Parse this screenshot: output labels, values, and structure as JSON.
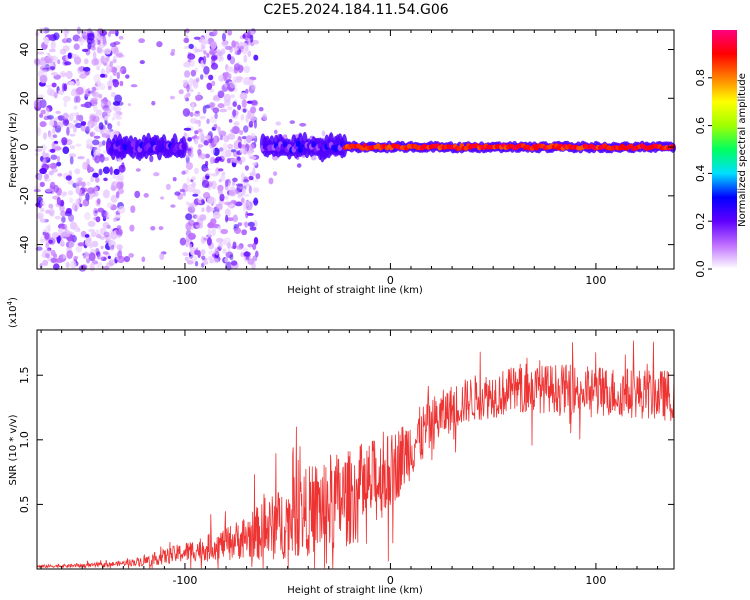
{
  "title": "C2E5.2024.184.11.54.G06",
  "chart_data": [
    {
      "type": "heatmap",
      "xlabel": "Height of straight line (km)",
      "ylabel": "Frequency (Hz)",
      "xlim": [
        -172,
        138
      ],
      "ylim": [
        -50,
        48
      ],
      "x_ticks": [
        -100,
        0,
        100
      ],
      "x_tick_labels": [
        "-100",
        "0",
        "100"
      ],
      "y_ticks": [
        -40,
        -20,
        0,
        20,
        40
      ],
      "y_tick_labels": [
        "-40",
        "-20",
        "0",
        "20",
        "40"
      ],
      "colorbar": {
        "label": "Normalized spectral amplitude",
        "range": [
          0,
          1
        ],
        "ticks": [
          0.0,
          0.2,
          0.4,
          0.6,
          0.8
        ],
        "tick_labels": [
          "0.0",
          "0.2",
          "0.4",
          "0.6",
          "0.8"
        ],
        "colors": [
          "#ffffff",
          "#c070ff",
          "#6000ff",
          "#0000ff",
          "#00e0ff",
          "#00ff60",
          "#a0ff00",
          "#ffff00",
          "#ff8000",
          "#ff0000",
          "#ff0080"
        ]
      },
      "noise_regions": [
        {
          "x_range": [
            -172,
            -130
          ],
          "density": 0.55
        },
        {
          "x_range": [
            -100,
            -65
          ],
          "density": 0.5
        }
      ],
      "ridge": [
        {
          "x_range": [
            -137,
            -100
          ],
          "frequency": 0,
          "amplitude": 0.3
        },
        {
          "x_range": [
            -62,
            -22
          ],
          "frequency": 0,
          "amplitude": 0.3
        },
        {
          "x_range": [
            -22,
            138
          ],
          "frequency": 0,
          "amplitude": 0.95
        }
      ]
    },
    {
      "type": "line",
      "xlabel": "Height of straight line (km)",
      "ylabel": "SNR (10 * v/v)",
      "y_scale_note": "(x10",
      "y_scale_exp": "4",
      "xlim": [
        -172,
        138
      ],
      "ylim": [
        0,
        1.85
      ],
      "x_ticks": [
        -100,
        0,
        100
      ],
      "x_tick_labels": [
        "-100",
        "0",
        "100"
      ],
      "y_ticks": [
        0.5,
        1.0,
        1.5
      ],
      "y_tick_labels": [
        "0.5",
        "1.0",
        "1.5"
      ],
      "color": "#ee3333",
      "trend": {
        "x": [
          -172,
          -140,
          -120,
          -100,
          -80,
          -60,
          -40,
          -20,
          -10,
          0,
          10,
          20,
          30,
          40,
          60,
          80,
          100,
          120,
          138
        ],
        "y": [
          0.02,
          0.03,
          0.06,
          0.13,
          0.2,
          0.3,
          0.45,
          0.55,
          0.65,
          0.75,
          0.95,
          1.12,
          1.25,
          1.32,
          1.38,
          1.4,
          1.38,
          1.36,
          1.34
        ]
      },
      "noise": {
        "x": [
          -172,
          -130,
          -110,
          -80,
          -50,
          -30,
          -10,
          10,
          30,
          138
        ],
        "y": [
          0.01,
          0.02,
          0.06,
          0.12,
          0.3,
          0.4,
          0.35,
          0.25,
          0.18,
          0.2
        ]
      }
    }
  ]
}
